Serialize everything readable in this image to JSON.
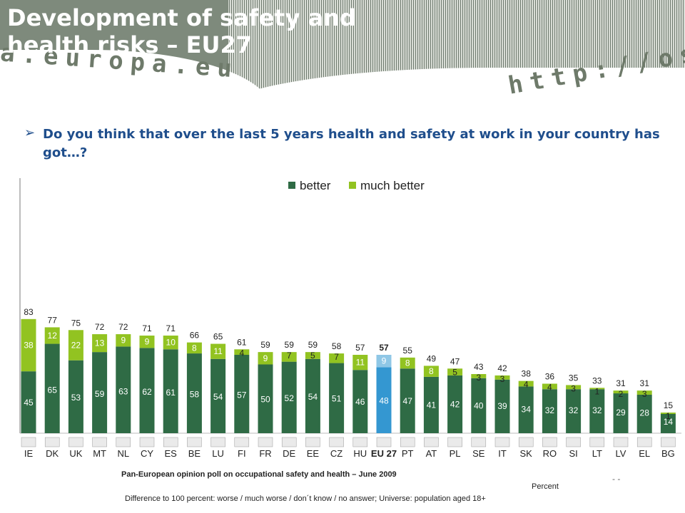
{
  "header": {
    "title": "Development of safety and health risks – EU27",
    "banner_url_left": "a.europa.eu",
    "banner_url_right": "http://osha"
  },
  "question": "Do you think that over the last 5 years health and safety at work in your country has got…?",
  "footer": {
    "source": "Pan-European opinion poll on occupational safety and health – June 2009",
    "unit": "Percent",
    "note": "Difference to 100 percent: worse / much worse / don´t know / no answer; Universe: population aged 18+",
    "page_number": "- -"
  },
  "colors": {
    "better": "#2f6b45",
    "much_better": "#92c321",
    "eu_better": "#3497d1",
    "eu_much_better": "#8fc7e6"
  },
  "chart_data": {
    "type": "bar",
    "stacked": true,
    "categories": [
      "IE",
      "DK",
      "UK",
      "MT",
      "NL",
      "CY",
      "ES",
      "BE",
      "LU",
      "FI",
      "FR",
      "DE",
      "EE",
      "CZ",
      "HU",
      "EU 27",
      "PT",
      "AT",
      "PL",
      "SE",
      "IT",
      "SK",
      "RO",
      "SI",
      "LT",
      "LV",
      "EL",
      "BG"
    ],
    "series": [
      {
        "name": "better",
        "values": [
          45,
          65,
          53,
          59,
          63,
          62,
          61,
          58,
          54,
          57,
          50,
          52,
          54,
          51,
          46,
          48,
          47,
          41,
          42,
          40,
          39,
          34,
          32,
          32,
          32,
          29,
          28,
          14
        ]
      },
      {
        "name": "much better",
        "values": [
          38,
          12,
          22,
          13,
          9,
          9,
          10,
          8,
          11,
          4,
          9,
          7,
          5,
          7,
          11,
          9,
          8,
          8,
          5,
          3,
          3,
          4,
          4,
          3,
          1,
          2,
          3,
          1
        ]
      }
    ],
    "totals": [
      83,
      77,
      75,
      72,
      72,
      71,
      71,
      66,
      65,
      61,
      59,
      59,
      59,
      58,
      57,
      57,
      55,
      49,
      47,
      43,
      42,
      38,
      36,
      35,
      33,
      31,
      31,
      15
    ],
    "highlight": "EU 27",
    "legend_position": "top",
    "ylim": [
      0,
      90
    ],
    "grid": false
  }
}
